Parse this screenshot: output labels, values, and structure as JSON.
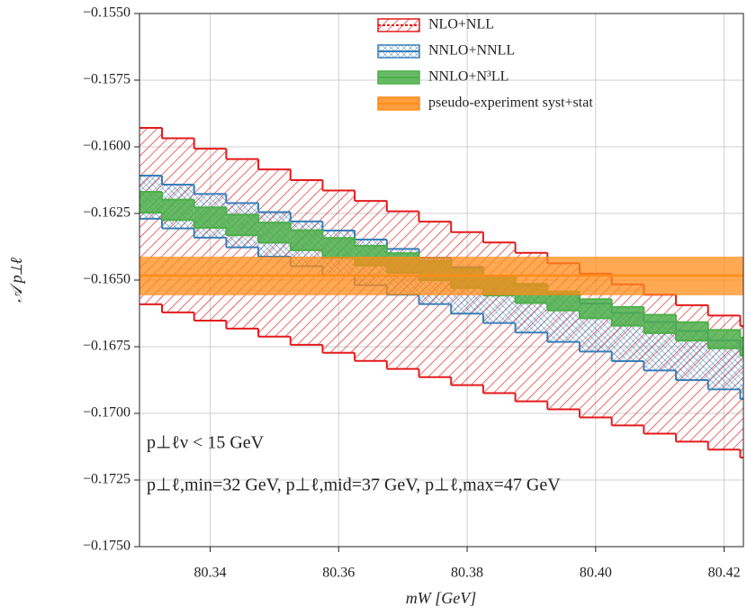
{
  "chart_data": {
    "type": "step-band",
    "x_label": "mW [GeV]",
    "y_label": "𝒜 p⊥ℓ",
    "annotations": [
      "p⊥ℓν < 15 GeV",
      "p⊥ℓ,min=32 GeV, p⊥ℓ,mid=37 GeV, p⊥ℓ,max=47 GeV"
    ],
    "xlim": [
      80.329,
      80.423
    ],
    "ylim": [
      -0.175,
      -0.155
    ],
    "xticks": [
      80.34,
      80.36,
      80.38,
      {
        "value": 80.4,
        "label": "80.40"
      },
      80.42
    ],
    "yticks": [
      {
        "value": -0.155,
        "label": "−0.1550"
      },
      {
        "value": -0.1575,
        "label": "−0.1575"
      },
      {
        "value": -0.16,
        "label": "−0.1600"
      },
      {
        "value": -0.1625,
        "label": "−0.1625"
      },
      {
        "value": -0.165,
        "label": "−0.1650"
      },
      {
        "value": -0.1675,
        "label": "−0.1675"
      },
      {
        "value": -0.17,
        "label": "−0.1700"
      },
      {
        "value": -0.1725,
        "label": "−0.1725"
      },
      {
        "value": -0.175,
        "label": "−0.1750"
      }
    ],
    "grid": true,
    "legend": "upper right",
    "bin_width": 0.005,
    "x": [
      80.33,
      80.335,
      80.34,
      80.345,
      80.35,
      80.355,
      80.36,
      80.365,
      80.37,
      80.375,
      80.38,
      80.385,
      80.39,
      80.395,
      80.4,
      80.405,
      80.41,
      80.415,
      80.42,
      80.425
    ],
    "series": [
      {
        "name": "NLO+NLL",
        "color": "#e31a1c",
        "hatch": "diagonal",
        "upper": [
          -0.15929,
          -0.15968,
          -0.16007,
          -0.16046,
          -0.16085,
          -0.16125,
          -0.16164,
          -0.16203,
          -0.16242,
          -0.16281,
          -0.1632,
          -0.16359,
          -0.16398,
          -0.16437,
          -0.16476,
          -0.16516,
          -0.16555,
          -0.16594,
          -0.16633,
          -0.16672
        ],
        "lower": [
          -0.16591,
          -0.16621,
          -0.16652,
          -0.16682,
          -0.16712,
          -0.16743,
          -0.16773,
          -0.16803,
          -0.16833,
          -0.16864,
          -0.16894,
          -0.16924,
          -0.16955,
          -0.16985,
          -0.17015,
          -0.17045,
          -0.17076,
          -0.17106,
          -0.17136,
          -0.17166
        ]
      },
      {
        "name": "NNLO+NNLL",
        "color": "#377eb8",
        "hatch": "cross",
        "upper": [
          -0.16108,
          -0.16142,
          -0.16177,
          -0.16211,
          -0.16245,
          -0.1628,
          -0.16314,
          -0.16348,
          -0.16383,
          -0.16417,
          -0.16451,
          -0.16485,
          -0.1652,
          -0.16554,
          -0.16588,
          -0.16623,
          -0.16657,
          -0.16691,
          -0.16726,
          -0.1676
        ],
        "lower": [
          -0.1627,
          -0.16306,
          -0.16341,
          -0.16377,
          -0.16412,
          -0.16448,
          -0.16483,
          -0.16519,
          -0.16555,
          -0.1659,
          -0.16626,
          -0.16661,
          -0.16697,
          -0.16732,
          -0.16768,
          -0.16804,
          -0.16839,
          -0.16875,
          -0.1691,
          -0.16946
        ]
      },
      {
        "name": "NNLO+N³LL",
        "color": "#4daf4a",
        "hatch": "none",
        "upper": [
          -0.16169,
          -0.16198,
          -0.16227,
          -0.16255,
          -0.16284,
          -0.16313,
          -0.16342,
          -0.16371,
          -0.16399,
          -0.16428,
          -0.16457,
          -0.16486,
          -0.16514,
          -0.16543,
          -0.16572,
          -0.16601,
          -0.1663,
          -0.16658,
          -0.16687,
          -0.16716
        ],
        "lower": [
          -0.16247,
          -0.16275,
          -0.16304,
          -0.16332,
          -0.1636,
          -0.16388,
          -0.16417,
          -0.16445,
          -0.16473,
          -0.16501,
          -0.1653,
          -0.16558,
          -0.16586,
          -0.16614,
          -0.16643,
          -0.16671,
          -0.16699,
          -0.16727,
          -0.16756,
          -0.16784
        ]
      },
      {
        "name": "pseudo-experiment syst+stat",
        "color": "#ff8c1a",
        "hatch": "none",
        "upper": -0.16412,
        "lower": -0.16557,
        "center": -0.16483
      }
    ]
  }
}
